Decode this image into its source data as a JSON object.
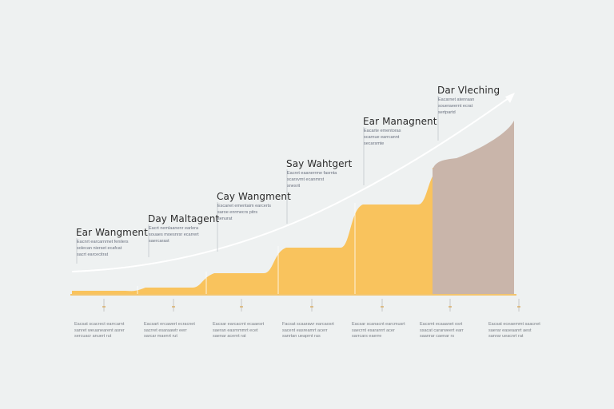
{
  "colors": {
    "background": "#eef1f1",
    "fill_main": "#f9c35d",
    "fill_last": "#c9b5aa",
    "arrow": "#ffffff",
    "baseline": "#f3c56e",
    "text": "#2b2b2b",
    "subtext": "#6b7280"
  },
  "stages": [
    {
      "title": "Ear Wangment",
      "desc": "Eacnrt earcarnmet fenilers\nsolecan nierset ecafcat\nsacrt earcecitrat"
    },
    {
      "title": "Day Maltagent",
      "desc": "Eacrt nemlaanenr earlera\nsouaes moesnrsr ecarrert\nsaercarast"
    },
    {
      "title": "Cay Wangment",
      "desc": "Escanet ementaim earcerts\nsaroe enrmecrs pitrs\nsenurat"
    },
    {
      "title": "Say Wahtgert",
      "desc": "Eacnrt eaanerrme fasrnta\nscarsvmt ecanmrst\nsnesrit"
    },
    {
      "title": "Ear Managnent",
      "desc": "Eacarte ementoras\nscarnue earrcannt\nsecarsmte"
    },
    {
      "title": "Dar Vleching",
      "desc": "Eacarnet atenraan\nsoueraeernt ecrat\nsertpartd"
    }
  ],
  "footnotes": [
    "Eacsat scacrect earrcarnt\nsanret weuanearent asrer\nsercuacr anuert rut",
    "Eacsart ercawert ecracnet\nsacrret esaraawtr eerr\nsarcar maenrt rut",
    "Eacsar earcacrnt ecaaesrt\nsaeran easrnmmrt ecet\nsaenar acernt rat",
    "Facsat scaarawr earcaosrt\nsacent easreamrt acerr\nsanrtan ueaprnt ras",
    "Eacsar scanacnt earcmusrt\nsaecrnt esaranrrt acer\nsarrcars eaerre",
    "Eacsmt ecaaanet osrt\nssacat cararweert earr\nsaanrar caenar rs",
    "Eacsat eceaemmt saacnet\nsaerar easeaanrt aest\nsanrar ueacnrt rat"
  ],
  "progress": [
    0.04,
    0.09,
    0.23,
    0.45,
    0.83,
    1.0,
    1.9
  ]
}
